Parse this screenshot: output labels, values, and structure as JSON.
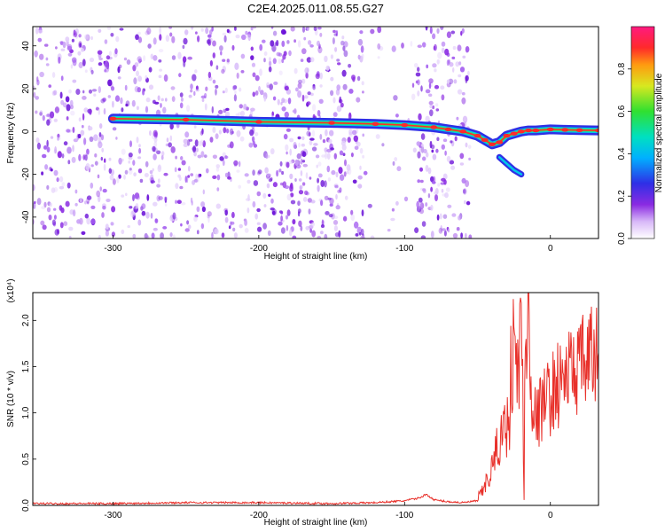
{
  "title": "C2E4.2025.011.08.55.G27",
  "colors": {
    "snr_line": "#e8302a",
    "ridge_core": "#ff2a2a",
    "ridge_mid": "#2ee86a",
    "ridge_edge": "#2f2fe6",
    "noise": "#8a2be2"
  },
  "chart_data": [
    {
      "type": "heatmap",
      "title": "",
      "xlabel": "Height of straight line (km)",
      "ylabel": "Frequency (Hz)",
      "xlim": [
        -355,
        33
      ],
      "ylim": [
        -50,
        49
      ],
      "x_ticks": [
        "-300",
        "-200",
        "-100",
        "0"
      ],
      "y_ticks": [
        "-40",
        "-20",
        "0",
        "20",
        "40"
      ],
      "colorbar": {
        "label": "Normalized spectral amplitude",
        "range": [
          0.0,
          1.0
        ],
        "ticks": [
          "0.0",
          "0.2",
          "0.4",
          "0.6",
          "0.8"
        ],
        "colormap": "rainbow (white → violet → blue → cyan → green → yellow → red → magenta)"
      },
      "ridge": {
        "x": [
          -300,
          -250,
          -200,
          -150,
          -120,
          -100,
          -80,
          -70,
          -60,
          -50,
          -45,
          -40,
          -35,
          -30,
          -25,
          -20,
          -15,
          -10,
          0,
          10,
          20,
          33
        ],
        "y": [
          6,
          5.5,
          4.5,
          4,
          3.5,
          3,
          2,
          1,
          0,
          -2,
          -4,
          -6,
          -5,
          -2,
          -1,
          0,
          0.5,
          0.5,
          1,
          0.8,
          0.6,
          0.5
        ]
      },
      "ridge_branch": {
        "x": [
          -35,
          -30,
          -25,
          -20
        ],
        "y": [
          -12,
          -15,
          -18,
          -20
        ]
      },
      "noise_extent_x": [
        -355,
        -55
      ]
    },
    {
      "type": "line",
      "title": "",
      "xlabel": "Height of straight line (km)",
      "ylabel": "SNR (10 * v/v)",
      "y_multiplier": "(x10⁴)",
      "xlim": [
        -355,
        33
      ],
      "ylim": [
        0,
        2.3
      ],
      "x_ticks": [
        "-300",
        "-200",
        "-100",
        "0"
      ],
      "y_ticks": [
        "0.0",
        "0.5",
        "1.0",
        "1.5",
        "2.0"
      ],
      "series": [
        {
          "x": [
            -355,
            -300,
            -250,
            -200,
            -150,
            -120,
            -100,
            -90,
            -85,
            -80,
            -70,
            -60,
            -50,
            -45,
            -40,
            -35,
            -30,
            -28,
            -25,
            -22,
            -20,
            -18,
            -15,
            -12,
            -10,
            -5,
            0,
            5,
            10,
            15,
            20,
            25,
            33
          ],
          "y": [
            0.02,
            0.02,
            0.03,
            0.03,
            0.02,
            0.03,
            0.05,
            0.08,
            0.12,
            0.06,
            0.04,
            0.03,
            0.05,
            0.2,
            0.4,
            0.7,
            0.9,
            1.2,
            1.8,
            1.3,
            2.1,
            0.6,
            2.35,
            1.1,
            0.9,
            1.1,
            1.2,
            1.3,
            1.4,
            1.45,
            1.5,
            1.55,
            1.65
          ]
        }
      ]
    }
  ]
}
